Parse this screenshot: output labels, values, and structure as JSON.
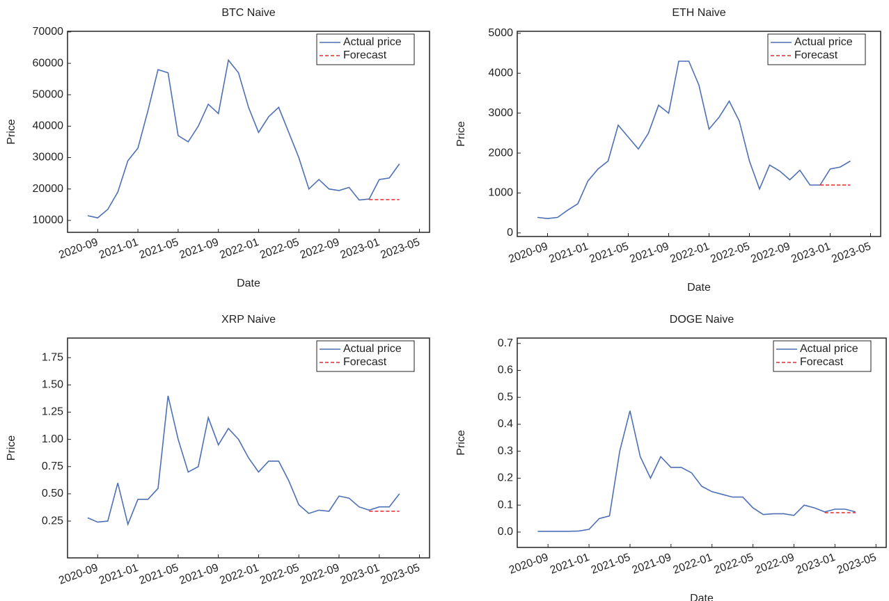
{
  "chart_data": [
    {
      "type": "line",
      "title": "BTC Naive",
      "x_label": "Date",
      "y_label": "Price",
      "legend": "upper right",
      "x": [
        "2020-08",
        "2020-09",
        "2020-10",
        "2020-11",
        "2020-12",
        "2021-01",
        "2021-02",
        "2021-03",
        "2021-04",
        "2021-05",
        "2021-06",
        "2021-07",
        "2021-08",
        "2021-09",
        "2021-10",
        "2021-11",
        "2021-12",
        "2022-01",
        "2022-02",
        "2022-03",
        "2022-04",
        "2022-05",
        "2022-06",
        "2022-07",
        "2022-08",
        "2022-09",
        "2022-10",
        "2022-11",
        "2022-12",
        "2023-01",
        "2023-02",
        "2023-03"
      ],
      "series": [
        {
          "name": "Actual price",
          "color": "#4c6fb5",
          "line_style": "solid",
          "values": [
            11500,
            10800,
            13500,
            19000,
            29000,
            33000,
            45000,
            58000,
            57000,
            37000,
            35000,
            40000,
            47000,
            44000,
            61000,
            57000,
            46000,
            38000,
            43000,
            46000,
            38000,
            30000,
            20000,
            23000,
            20000,
            19500,
            20500,
            16500,
            16800,
            23000,
            23500,
            28000
          ]
        },
        {
          "name": "Forecast",
          "color": "#e8262a",
          "line_style": "dashed",
          "values": [
            null,
            null,
            null,
            null,
            null,
            null,
            null,
            null,
            null,
            null,
            null,
            null,
            null,
            null,
            null,
            null,
            null,
            null,
            null,
            null,
            null,
            null,
            null,
            null,
            null,
            null,
            null,
            null,
            16600,
            16600,
            16600,
            16600
          ]
        }
      ],
      "xlim": [
        "2020-06",
        "2023-06"
      ],
      "xticks": [
        "2020-09",
        "2021-01",
        "2021-05",
        "2021-09",
        "2022-01",
        "2022-05",
        "2022-09",
        "2023-01",
        "2023-05"
      ],
      "ylim": [
        6200,
        70200
      ],
      "yticks": [
        10000,
        20000,
        30000,
        40000,
        50000,
        60000,
        70000
      ]
    },
    {
      "type": "line",
      "title": "ETH Naive",
      "x_label": "Date",
      "y_label": "Price",
      "legend": "upper right",
      "x": [
        "2020-08",
        "2020-09",
        "2020-10",
        "2020-11",
        "2020-12",
        "2021-01",
        "2021-02",
        "2021-03",
        "2021-04",
        "2021-05",
        "2021-06",
        "2021-07",
        "2021-08",
        "2021-09",
        "2021-10",
        "2021-11",
        "2021-12",
        "2022-01",
        "2022-02",
        "2022-03",
        "2022-04",
        "2022-05",
        "2022-06",
        "2022-07",
        "2022-08",
        "2022-09",
        "2022-10",
        "2022-11",
        "2022-12",
        "2023-01",
        "2023-02",
        "2023-03"
      ],
      "series": [
        {
          "name": "Actual price",
          "color": "#4c6fb5",
          "line_style": "solid",
          "values": [
            390,
            360,
            390,
            570,
            730,
            1300,
            1600,
            1800,
            2700,
            2400,
            2100,
            2500,
            3200,
            3000,
            4300,
            4300,
            3700,
            2600,
            2900,
            3300,
            2800,
            1800,
            1100,
            1700,
            1550,
            1330,
            1570,
            1200,
            1200,
            1600,
            1650,
            1800
          ]
        },
        {
          "name": "Forecast",
          "color": "#e8262a",
          "line_style": "dashed",
          "values": [
            null,
            null,
            null,
            null,
            null,
            null,
            null,
            null,
            null,
            null,
            null,
            null,
            null,
            null,
            null,
            null,
            null,
            null,
            null,
            null,
            null,
            null,
            null,
            null,
            null,
            null,
            null,
            null,
            1200,
            1200,
            1200,
            1200
          ]
        }
      ],
      "xlim": [
        "2020-06",
        "2023-06"
      ],
      "xticks": [
        "2020-09",
        "2021-01",
        "2021-05",
        "2021-09",
        "2022-01",
        "2022-05",
        "2022-09",
        "2023-01",
        "2023-05"
      ],
      "ylim": [
        -90,
        5050
      ],
      "yticks": [
        0,
        1000,
        2000,
        3000,
        4000,
        5000
      ]
    },
    {
      "type": "line",
      "title": "XRP Naive",
      "x_label": "Date",
      "y_label": "Price",
      "legend": "upper right",
      "x": [
        "2020-08",
        "2020-09",
        "2020-10",
        "2020-11",
        "2020-12",
        "2021-01",
        "2021-02",
        "2021-03",
        "2021-04",
        "2021-05",
        "2021-06",
        "2021-07",
        "2021-08",
        "2021-09",
        "2021-10",
        "2021-11",
        "2021-12",
        "2022-01",
        "2022-02",
        "2022-03",
        "2022-04",
        "2022-05",
        "2022-06",
        "2022-07",
        "2022-08",
        "2022-09",
        "2022-10",
        "2022-11",
        "2022-12",
        "2023-01",
        "2023-02",
        "2023-03"
      ],
      "series": [
        {
          "name": "Actual price",
          "color": "#4c6fb5",
          "line_style": "solid",
          "values": [
            0.28,
            0.24,
            0.25,
            0.6,
            0.22,
            0.45,
            0.45,
            0.55,
            1.4,
            1.0,
            0.7,
            0.75,
            1.2,
            0.95,
            1.1,
            1.0,
            0.83,
            0.7,
            0.8,
            0.8,
            0.62,
            0.4,
            0.32,
            0.35,
            0.34,
            0.48,
            0.46,
            0.38,
            0.35,
            0.38,
            0.38,
            0.5
          ]
        },
        {
          "name": "Forecast",
          "color": "#e8262a",
          "line_style": "dashed",
          "values": [
            null,
            null,
            null,
            null,
            null,
            null,
            null,
            null,
            null,
            null,
            null,
            null,
            null,
            null,
            null,
            null,
            null,
            null,
            null,
            null,
            null,
            null,
            null,
            null,
            null,
            null,
            null,
            null,
            0.34,
            0.34,
            0.34,
            0.34
          ]
        }
      ],
      "xlim": [
        "2020-06",
        "2023-06"
      ],
      "xticks": [
        "2020-09",
        "2021-01",
        "2021-05",
        "2021-09",
        "2022-01",
        "2022-05",
        "2022-09",
        "2023-01",
        "2023-05"
      ],
      "ylim": [
        -0.088,
        1.93
      ],
      "yticks": [
        0.25,
        {
          "value": 0.5,
          "label": "0.50"
        },
        0.75,
        {
          "value": 1,
          "label": "1.00"
        },
        1.25,
        {
          "value": 1.5,
          "label": "1.50"
        },
        1.75
      ]
    },
    {
      "type": "line",
      "title": "DOGE Naive",
      "x_label": "Date",
      "y_label": "Price",
      "legend": "upper right",
      "x": [
        "2020-08",
        "2020-09",
        "2020-10",
        "2020-11",
        "2020-12",
        "2021-01",
        "2021-02",
        "2021-03",
        "2021-04",
        "2021-05",
        "2021-06",
        "2021-07",
        "2021-08",
        "2021-09",
        "2021-10",
        "2021-11",
        "2021-12",
        "2022-01",
        "2022-02",
        "2022-03",
        "2022-04",
        "2022-05",
        "2022-06",
        "2022-07",
        "2022-08",
        "2022-09",
        "2022-10",
        "2022-11",
        "2022-12",
        "2023-01",
        "2023-02",
        "2023-03"
      ],
      "series": [
        {
          "name": "Actual price",
          "color": "#4c6fb5",
          "line_style": "solid",
          "values": [
            0.003,
            0.003,
            0.003,
            0.003,
            0.004,
            0.01,
            0.05,
            0.06,
            0.3,
            0.45,
            0.28,
            0.2,
            0.28,
            0.24,
            0.24,
            0.22,
            0.17,
            0.15,
            0.14,
            0.13,
            0.13,
            0.09,
            0.065,
            0.068,
            0.068,
            0.062,
            0.1,
            0.09,
            0.075,
            0.085,
            0.085,
            0.075
          ]
        },
        {
          "name": "Forecast",
          "color": "#e8262a",
          "line_style": "dashed",
          "values": [
            null,
            null,
            null,
            null,
            null,
            null,
            null,
            null,
            null,
            null,
            null,
            null,
            null,
            null,
            null,
            null,
            null,
            null,
            null,
            null,
            null,
            null,
            null,
            null,
            null,
            null,
            null,
            null,
            0.072,
            0.072,
            0.072,
            0.072
          ]
        }
      ],
      "xlim": [
        "2020-06",
        "2023-06"
      ],
      "xticks": [
        "2020-09",
        "2021-01",
        "2021-05",
        "2021-09",
        "2022-01",
        "2022-05",
        "2022-09",
        "2023-01",
        "2023-05"
      ],
      "ylim": [
        -0.057,
        0.72
      ],
      "yticks": [
        {
          "value": 0,
          "label": "0.0"
        },
        0.1,
        0.2,
        0.3,
        0.4,
        0.5,
        0.6,
        0.7
      ]
    }
  ]
}
